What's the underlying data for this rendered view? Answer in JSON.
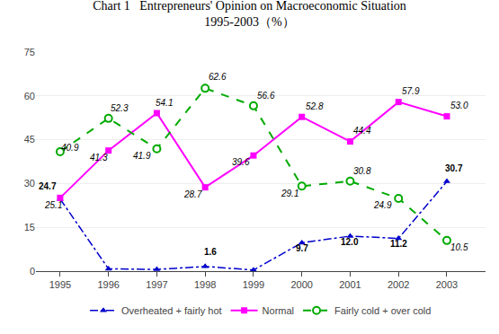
{
  "chart_data": {
    "type": "line",
    "title": "Chart 1   Entrepreneurs' Opinion on Macroeconomic Situation\n1995-2003（%）",
    "x": [
      1995,
      1996,
      1997,
      1998,
      1999,
      2000,
      2001,
      2002,
      2003
    ],
    "series": [
      {
        "name": "Overheated + fairly hot",
        "color": "#0000cc",
        "marker": "triangle-up",
        "line_style": "dashdot",
        "values": [
          24.7,
          0.8,
          0.6,
          1.6,
          0.4,
          9.7,
          12.0,
          11.2,
          30.7
        ],
        "value_labels": [
          "24.7",
          null,
          null,
          "1.6",
          null,
          "9.7",
          "12.0",
          "11.2",
          "30.7"
        ]
      },
      {
        "name": "Normal",
        "color": "#ff00ff",
        "marker": "square",
        "line_style": "solid",
        "values": [
          25.1,
          41.3,
          54.1,
          28.7,
          39.6,
          52.8,
          44.4,
          57.9,
          53.0
        ],
        "value_labels": [
          "25.1",
          "41.3",
          "54.1",
          "28.7",
          "39.6",
          "52.8",
          "44.4",
          "57.9",
          "53.0"
        ]
      },
      {
        "name": "Fairly cold + over cold",
        "color": "#00aa00",
        "marker": "circle-open",
        "line_style": "dash",
        "values": [
          40.9,
          52.3,
          41.9,
          62.6,
          56.6,
          29.1,
          30.8,
          24.9,
          10.5
        ],
        "value_labels": [
          "40.9",
          "52.3",
          "41.9",
          "62.6",
          "56.6",
          "29.1",
          "30.8",
          "24.9",
          "10.5"
        ]
      }
    ],
    "xlim": [
      1994.5,
      2003.8
    ],
    "xticks": [
      1995,
      1996,
      1997,
      1998,
      1999,
      2000,
      2001,
      2002,
      2003
    ],
    "ylim": [
      0,
      75
    ],
    "yticks": [
      0,
      15,
      30,
      45,
      60,
      75
    ],
    "grid": true,
    "legend": "bottom",
    "data_labels": true
  }
}
